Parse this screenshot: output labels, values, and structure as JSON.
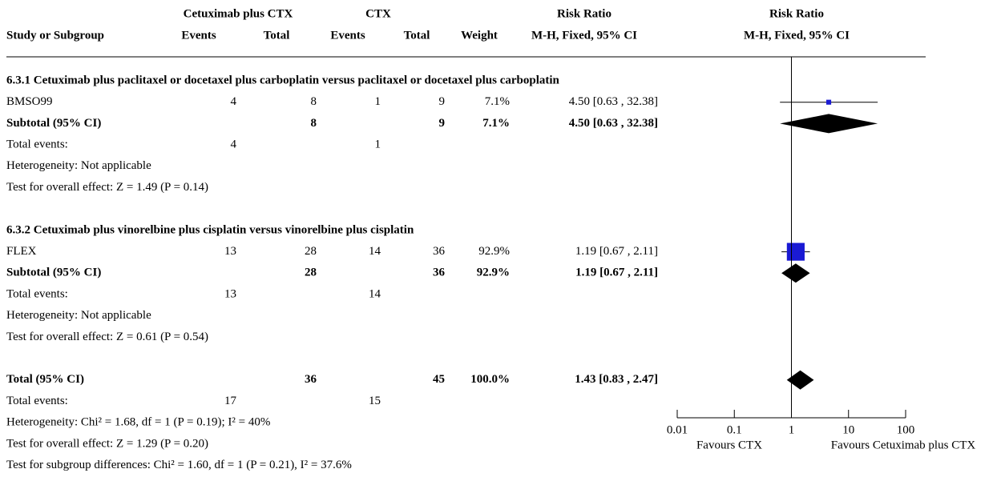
{
  "chart_data": {
    "type": "forest",
    "header": {
      "groups": [
        "Cetuximab plus CTX",
        "CTX",
        "Risk Ratio",
        "Risk Ratio"
      ],
      "columns": [
        "Study or Subgroup",
        "Events",
        "Total",
        "Events",
        "Total",
        "Weight",
        "M-H, Fixed, 95% CI",
        "M-H, Fixed, 95% CI"
      ]
    },
    "sections": [
      {
        "title": "6.3.1 Cetuximab plus paclitaxel or docetaxel plus carboplatin versus paclitaxel or docetaxel plus carboplatin",
        "rows": [
          {
            "label": "BMSO99",
            "e1": 4,
            "n1": 8,
            "e2": 1,
            "n2": 9,
            "weight": 7.1,
            "weight_label": "7.1%",
            "ci_label": "4.50 [0.63 , 32.38]",
            "rr": 4.5,
            "lo": 0.63,
            "hi": 32.38,
            "mark": "square"
          },
          {
            "label": "Subtotal (95% CI)",
            "n1": 8,
            "n2": 9,
            "weight": 7.1,
            "weight_label": "7.1%",
            "ci_label": "4.50 [0.63 , 32.38]",
            "rr": 4.5,
            "lo": 0.63,
            "hi": 32.38,
            "mark": "diamond",
            "bold": true
          },
          {
            "label": "Total events:",
            "e1": 4,
            "e2": 1
          },
          {
            "label": "Heterogeneity: Not applicable"
          },
          {
            "label": "Test for overall effect: Z = 1.49 (P = 0.14)"
          }
        ]
      },
      {
        "title": "6.3.2 Cetuximab plus vinorelbine plus cisplatin versus vinorelbine plus cisplatin",
        "rows": [
          {
            "label": "FLEX",
            "e1": 13,
            "n1": 28,
            "e2": 14,
            "n2": 36,
            "weight": 92.9,
            "weight_label": "92.9%",
            "ci_label": "1.19 [0.67 , 2.11]",
            "rr": 1.19,
            "lo": 0.67,
            "hi": 2.11,
            "mark": "square"
          },
          {
            "label": "Subtotal (95% CI)",
            "n1": 28,
            "n2": 36,
            "weight": 92.9,
            "weight_label": "92.9%",
            "ci_label": "1.19 [0.67 , 2.11]",
            "rr": 1.19,
            "lo": 0.67,
            "hi": 2.11,
            "mark": "diamond",
            "bold": true
          },
          {
            "label": "Total events:",
            "e1": 13,
            "e2": 14
          },
          {
            "label": "Heterogeneity: Not applicable"
          },
          {
            "label": "Test for overall effect: Z = 0.61 (P = 0.54)"
          }
        ]
      },
      {
        "rows": [
          {
            "label": "Total (95% CI)",
            "n1": 36,
            "n2": 45,
            "weight": 100,
            "weight_label": "100.0%",
            "ci_label": "1.43 [0.83 , 2.47]",
            "rr": 1.43,
            "lo": 0.83,
            "hi": 2.47,
            "mark": "diamond",
            "bold": true
          },
          {
            "label": "Total events:",
            "e1": 17,
            "e2": 15
          },
          {
            "label": "Heterogeneity: Chi² = 1.68, df = 1 (P = 0.19); I² = 40%"
          },
          {
            "label": "Test for overall effect: Z = 1.29 (P = 0.20)"
          },
          {
            "label": "Test for subgroup differences: Chi² = 1.60, df = 1 (P = 0.21), I² = 37.6%"
          }
        ]
      }
    ],
    "xlim": [
      0.01,
      100
    ],
    "xticks": [
      0.01,
      0.1,
      1,
      10,
      100
    ],
    "log": true,
    "xlabels": [
      "Favours CTX",
      "Favours Cetuximab plus CTX"
    ],
    "square_color": "#1a1ad4",
    "diamond_color": "#000000"
  }
}
